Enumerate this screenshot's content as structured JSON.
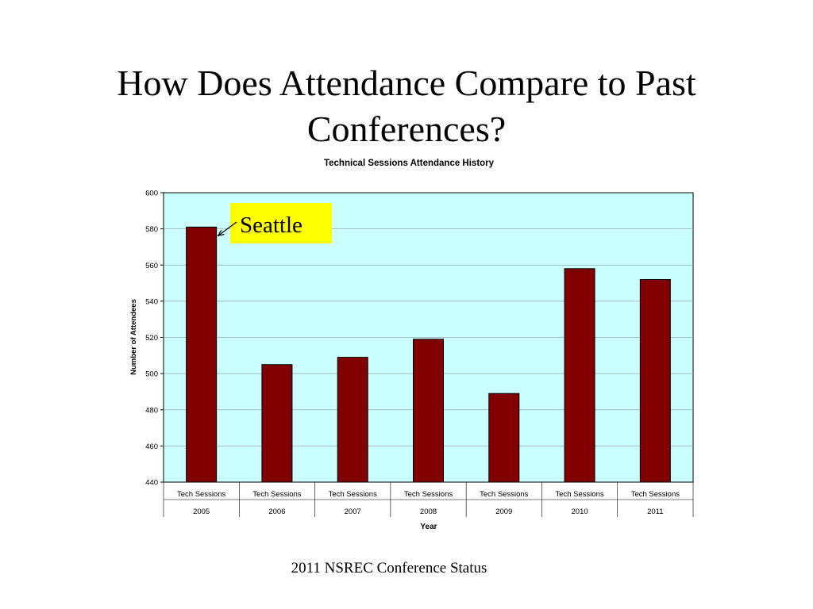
{
  "slide": {
    "title_line1": "How Does Attendance Compare to Past",
    "title_line2": "Conferences?",
    "footer": "2011 NSREC Conference Status"
  },
  "chart_data": {
    "type": "bar",
    "title": "Technical Sessions Attendance History",
    "xlabel": "Year",
    "ylabel": "Number of Attendees",
    "categories": [
      [
        "Tech Sessions",
        "2005"
      ],
      [
        "Tech Sessions",
        "2006"
      ],
      [
        "Tech Sessions",
        "2007"
      ],
      [
        "Tech Sessions",
        "2008"
      ],
      [
        "Tech Sessions",
        "2009"
      ],
      [
        "Tech Sessions",
        "2010"
      ],
      [
        "Tech Sessions",
        "2011"
      ]
    ],
    "values": [
      581,
      505,
      509,
      519,
      489,
      558,
      552
    ],
    "ylim": [
      440,
      600
    ],
    "yticks": [
      440,
      460,
      480,
      500,
      520,
      540,
      560,
      580,
      600
    ],
    "grid": true,
    "legend": "none",
    "annotation": {
      "text": "Seattle",
      "category_index": 0
    },
    "colors": {
      "bar": "#800000",
      "plot_background": "#ccffff",
      "annotation_background": "#ffff00",
      "gridline": "#9aaaaa"
    }
  }
}
